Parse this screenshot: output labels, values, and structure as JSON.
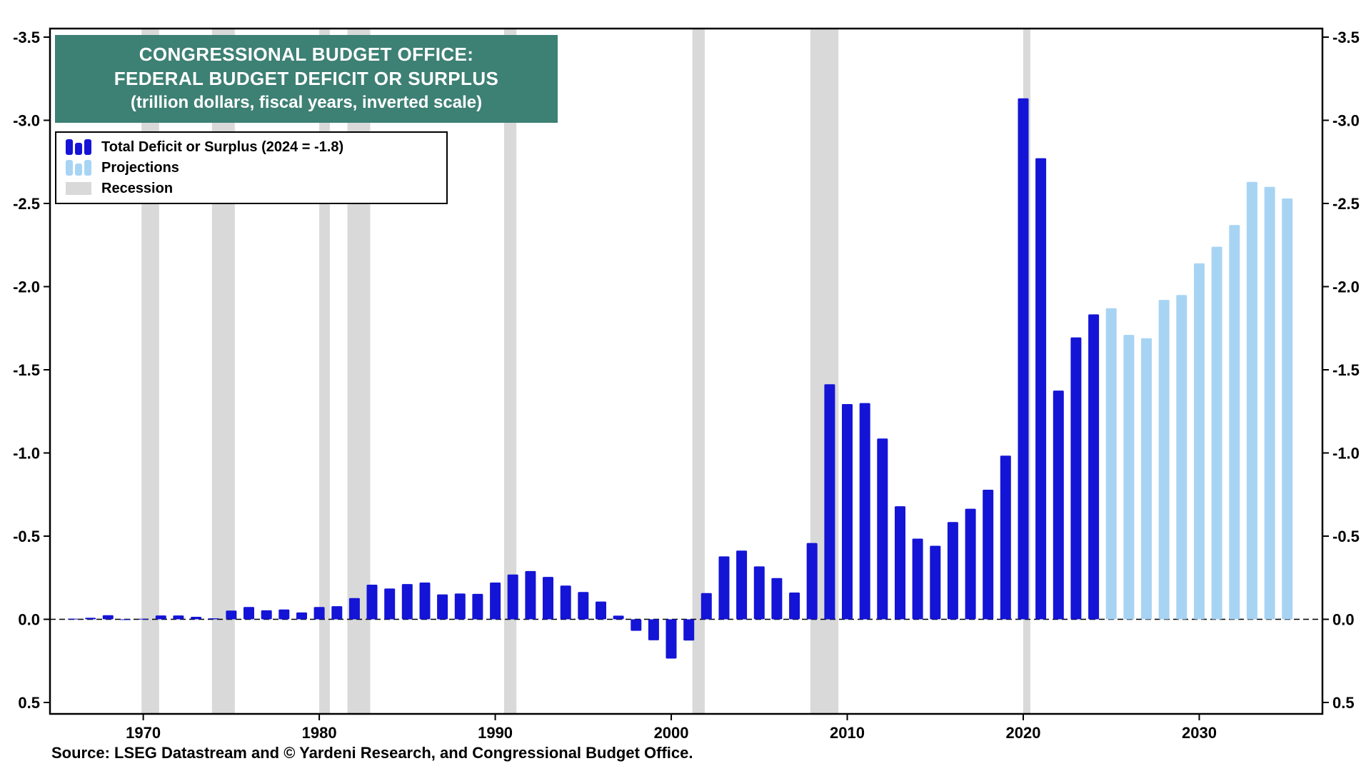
{
  "title": {
    "line1": "CONGRESSIONAL BUDGET OFFICE:",
    "line2": "FEDERAL BUDGET DEFICIT OR SURPLUS",
    "line3": "(trillion dollars, fiscal years, inverted scale)"
  },
  "legend": {
    "actual_label": "Total Deficit or Surplus (2024 = -1.8)",
    "projections_label": "Projections",
    "recession_label": "Recession"
  },
  "source": "Source: LSEG Datastream and © Yardeni Research, and Congressional Budget Office.",
  "colors": {
    "actual_bar": "#1414d7",
    "projection_bar": "#a8d4f4",
    "recession_band": "#d9d9d9",
    "title_background": "#3d8074",
    "title_text": "#ffffff",
    "axis": "#000000"
  },
  "chart_data": {
    "type": "bar",
    "title": "Congressional Budget Office: Federal Budget Deficit or Surplus",
    "subtitle": "trillion dollars, fiscal years, inverted scale",
    "inverted_scale": true,
    "xlim": [
      1964.7,
      2037.0
    ],
    "ylim": [
      -3.5,
      0.5
    ],
    "yticks": [
      -3.5,
      -3.0,
      -2.5,
      -2.0,
      -1.5,
      -1.0,
      -0.5,
      0.0,
      0.5
    ],
    "xticks": [
      1970,
      1980,
      1990,
      2000,
      2010,
      2020,
      2030
    ],
    "grid": false,
    "legend_position": "top-left",
    "series": [
      {
        "name": "Total Deficit or Surplus",
        "color_key": "actual_bar",
        "points": [
          [
            1966,
            -0.004
          ],
          [
            1967,
            -0.009
          ],
          [
            1968,
            -0.025
          ],
          [
            1969,
            0.003
          ],
          [
            1970,
            -0.003
          ],
          [
            1971,
            -0.023
          ],
          [
            1972,
            -0.023
          ],
          [
            1973,
            -0.015
          ],
          [
            1974,
            -0.006
          ],
          [
            1975,
            -0.053
          ],
          [
            1976,
            -0.074
          ],
          [
            1977,
            -0.054
          ],
          [
            1978,
            -0.059
          ],
          [
            1979,
            -0.041
          ],
          [
            1980,
            -0.074
          ],
          [
            1981,
            -0.079
          ],
          [
            1982,
            -0.128
          ],
          [
            1983,
            -0.208
          ],
          [
            1984,
            -0.185
          ],
          [
            1985,
            -0.212
          ],
          [
            1986,
            -0.221
          ],
          [
            1987,
            -0.15
          ],
          [
            1988,
            -0.155
          ],
          [
            1989,
            -0.153
          ],
          [
            1990,
            -0.221
          ],
          [
            1991,
            -0.269
          ],
          [
            1992,
            -0.29
          ],
          [
            1993,
            -0.255
          ],
          [
            1994,
            -0.203
          ],
          [
            1995,
            -0.164
          ],
          [
            1996,
            -0.107
          ],
          [
            1997,
            -0.022
          ],
          [
            1998,
            0.069
          ],
          [
            1999,
            0.126
          ],
          [
            2000,
            0.236
          ],
          [
            2001,
            0.128
          ],
          [
            2002,
            -0.158
          ],
          [
            2003,
            -0.378
          ],
          [
            2004,
            -0.413
          ],
          [
            2005,
            -0.318
          ],
          [
            2006,
            -0.248
          ],
          [
            2007,
            -0.161
          ],
          [
            2008,
            -0.459
          ],
          [
            2009,
            -1.413
          ],
          [
            2010,
            -1.294
          ],
          [
            2011,
            -1.3
          ],
          [
            2012,
            -1.087
          ],
          [
            2013,
            -0.68
          ],
          [
            2014,
            -0.485
          ],
          [
            2015,
            -0.442
          ],
          [
            2016,
            -0.585
          ],
          [
            2017,
            -0.665
          ],
          [
            2018,
            -0.779
          ],
          [
            2019,
            -0.984
          ],
          [
            2020,
            -3.132
          ],
          [
            2021,
            -2.772
          ],
          [
            2022,
            -1.375
          ],
          [
            2023,
            -1.695
          ],
          [
            2024,
            -1.833
          ]
        ]
      },
      {
        "name": "Projections",
        "color_key": "projection_bar",
        "points": [
          [
            2025,
            -1.87
          ],
          [
            2026,
            -1.71
          ],
          [
            2027,
            -1.69
          ],
          [
            2028,
            -1.92
          ],
          [
            2029,
            -1.95
          ],
          [
            2030,
            -2.14
          ],
          [
            2031,
            -2.24
          ],
          [
            2032,
            -2.37
          ],
          [
            2033,
            -2.63
          ],
          [
            2034,
            -2.6
          ],
          [
            2035,
            -2.53
          ]
        ]
      }
    ],
    "recessions": [
      [
        1969.9,
        1970.9
      ],
      [
        1973.9,
        1975.2
      ],
      [
        1980.0,
        1980.6
      ],
      [
        1981.6,
        1982.9
      ],
      [
        1990.5,
        1991.2
      ],
      [
        2001.2,
        2001.9
      ],
      [
        2007.9,
        2009.5
      ],
      [
        2020.0,
        2020.4
      ]
    ]
  }
}
